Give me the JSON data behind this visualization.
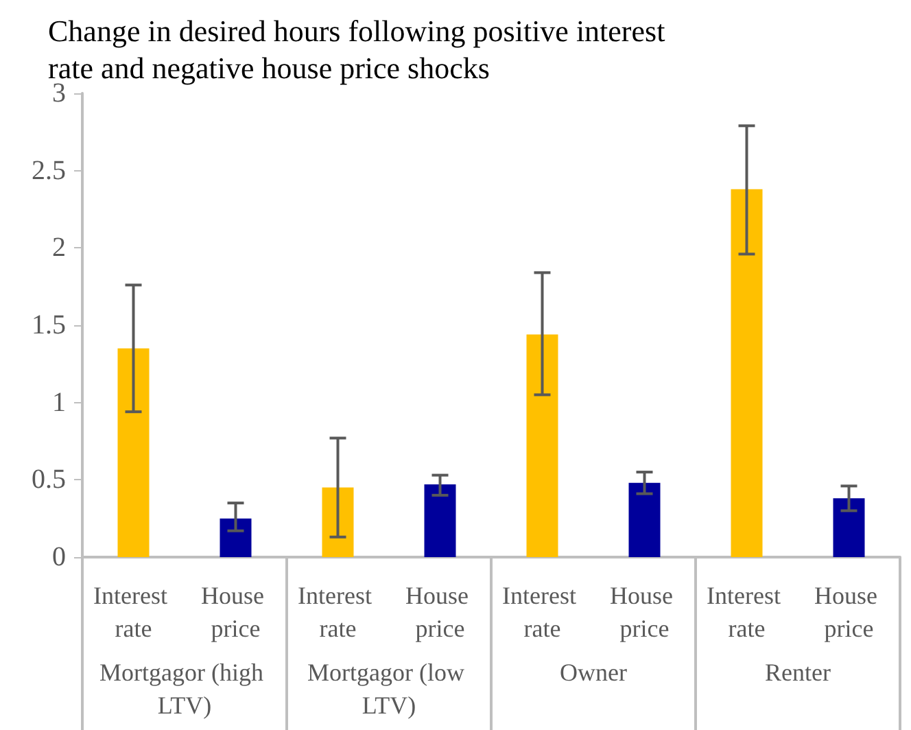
{
  "chart_data": {
    "type": "bar",
    "title": "Change in desired hours following positive interest rate and negative house price shocks",
    "categories": [
      "Mortgagor (high LTV)",
      "Mortgagor (low LTV)",
      "Owner",
      "Renter"
    ],
    "series": [
      {
        "name": "Interest rate",
        "color": "#ffc000",
        "values": [
          1.35,
          0.45,
          1.44,
          2.38
        ],
        "errors": [
          [
            0.94,
            1.76
          ],
          [
            0.13,
            0.77
          ],
          [
            1.05,
            1.84
          ],
          [
            1.96,
            2.79
          ]
        ]
      },
      {
        "name": "House price",
        "color": "#00009b",
        "values": [
          0.25,
          0.47,
          0.48,
          0.38
        ],
        "errors": [
          [
            0.17,
            0.35
          ],
          [
            0.4,
            0.53
          ],
          [
            0.41,
            0.55
          ],
          [
            0.3,
            0.46
          ]
        ]
      }
    ],
    "ylim": [
      0,
      3
    ],
    "yticks": [
      0,
      0.5,
      1,
      1.5,
      2,
      2.5,
      3
    ],
    "grid": false,
    "legend": false
  }
}
